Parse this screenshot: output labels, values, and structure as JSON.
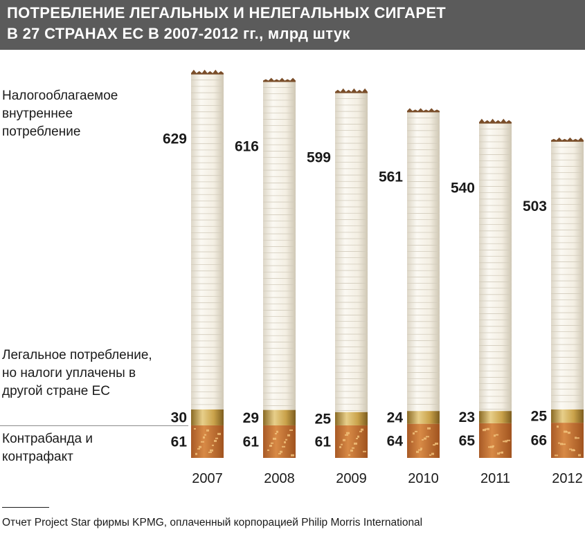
{
  "title": {
    "line1": "ПОТРЕБЛЕНИЕ ЛЕГАЛЬНЫХ И НЕЛЕГАЛЬНЫХ СИГАРЕТ",
    "line2": "В 27 СТРАНАХ ЕС В 2007-2012 гг., млрд штук"
  },
  "labels": {
    "taxed": "Налогооблагаемое внутреннее потребление",
    "legal_other": "Легальное потребление, но налоги уплачены в другой стране ЕС",
    "contraband": "Контрабанда и контрафакт"
  },
  "source": "Отчет Project Star фирмы KPMG, оплаченный корпорацией Philip Morris International",
  "colors": {
    "title_bg": "#5b5b5b",
    "paper": "#f3efe6",
    "band": "#c9a24a",
    "filter": "#c8783a"
  },
  "chart_data": {
    "type": "bar",
    "stacked": true,
    "categories": [
      "2007",
      "2008",
      "2009",
      "2010",
      "2011",
      "2012"
    ],
    "series": [
      {
        "name": "Контрабанда и контрафакт",
        "values": [
          61,
          61,
          61,
          64,
          65,
          66
        ]
      },
      {
        "name": "Легальное потребление, но налоги уплачены в другой стране ЕС",
        "values": [
          30,
          29,
          25,
          24,
          23,
          25
        ]
      },
      {
        "name": "Налогооблагаемое внутреннее потребление",
        "values": [
          629,
          616,
          599,
          561,
          540,
          503
        ]
      }
    ],
    "xlabel": "",
    "ylabel": ""
  }
}
